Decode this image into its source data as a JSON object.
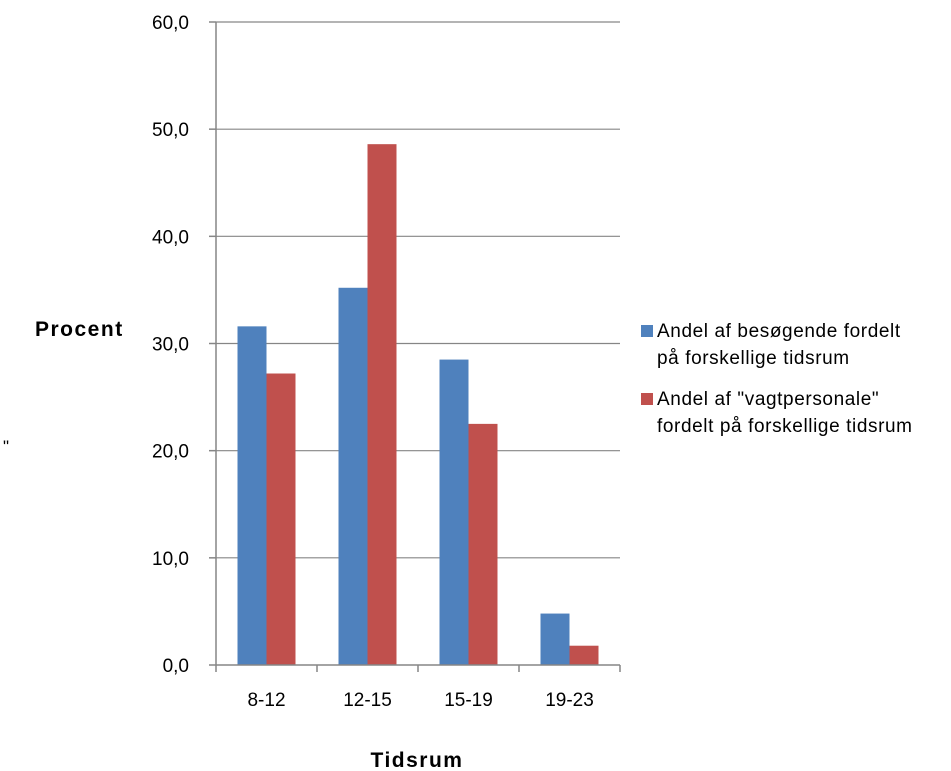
{
  "chart_data": {
    "type": "bar",
    "categories": [
      "8-12",
      "12-15",
      "15-19",
      "19-23"
    ],
    "series": [
      {
        "name": "Andel af besøgende fordelt på forskellige tidsrum",
        "color": "#4f81bd",
        "values": [
          31.6,
          35.2,
          28.5,
          4.8
        ]
      },
      {
        "name": "Andel af \"vagtpersonale\" fordelt på forskellige tidsrum",
        "color": "#c0504d",
        "values": [
          27.2,
          48.6,
          22.5,
          1.8
        ]
      }
    ],
    "xlabel": "Tidsrum",
    "ylabel": "Procent",
    "ylim": [
      0,
      60
    ],
    "yticks": [
      "0,0",
      "10,0",
      "20,0",
      "30,0",
      "40,0",
      "50,0",
      "60,0"
    ],
    "grid": true,
    "legend_position": "right",
    "stray_mark": "\""
  }
}
